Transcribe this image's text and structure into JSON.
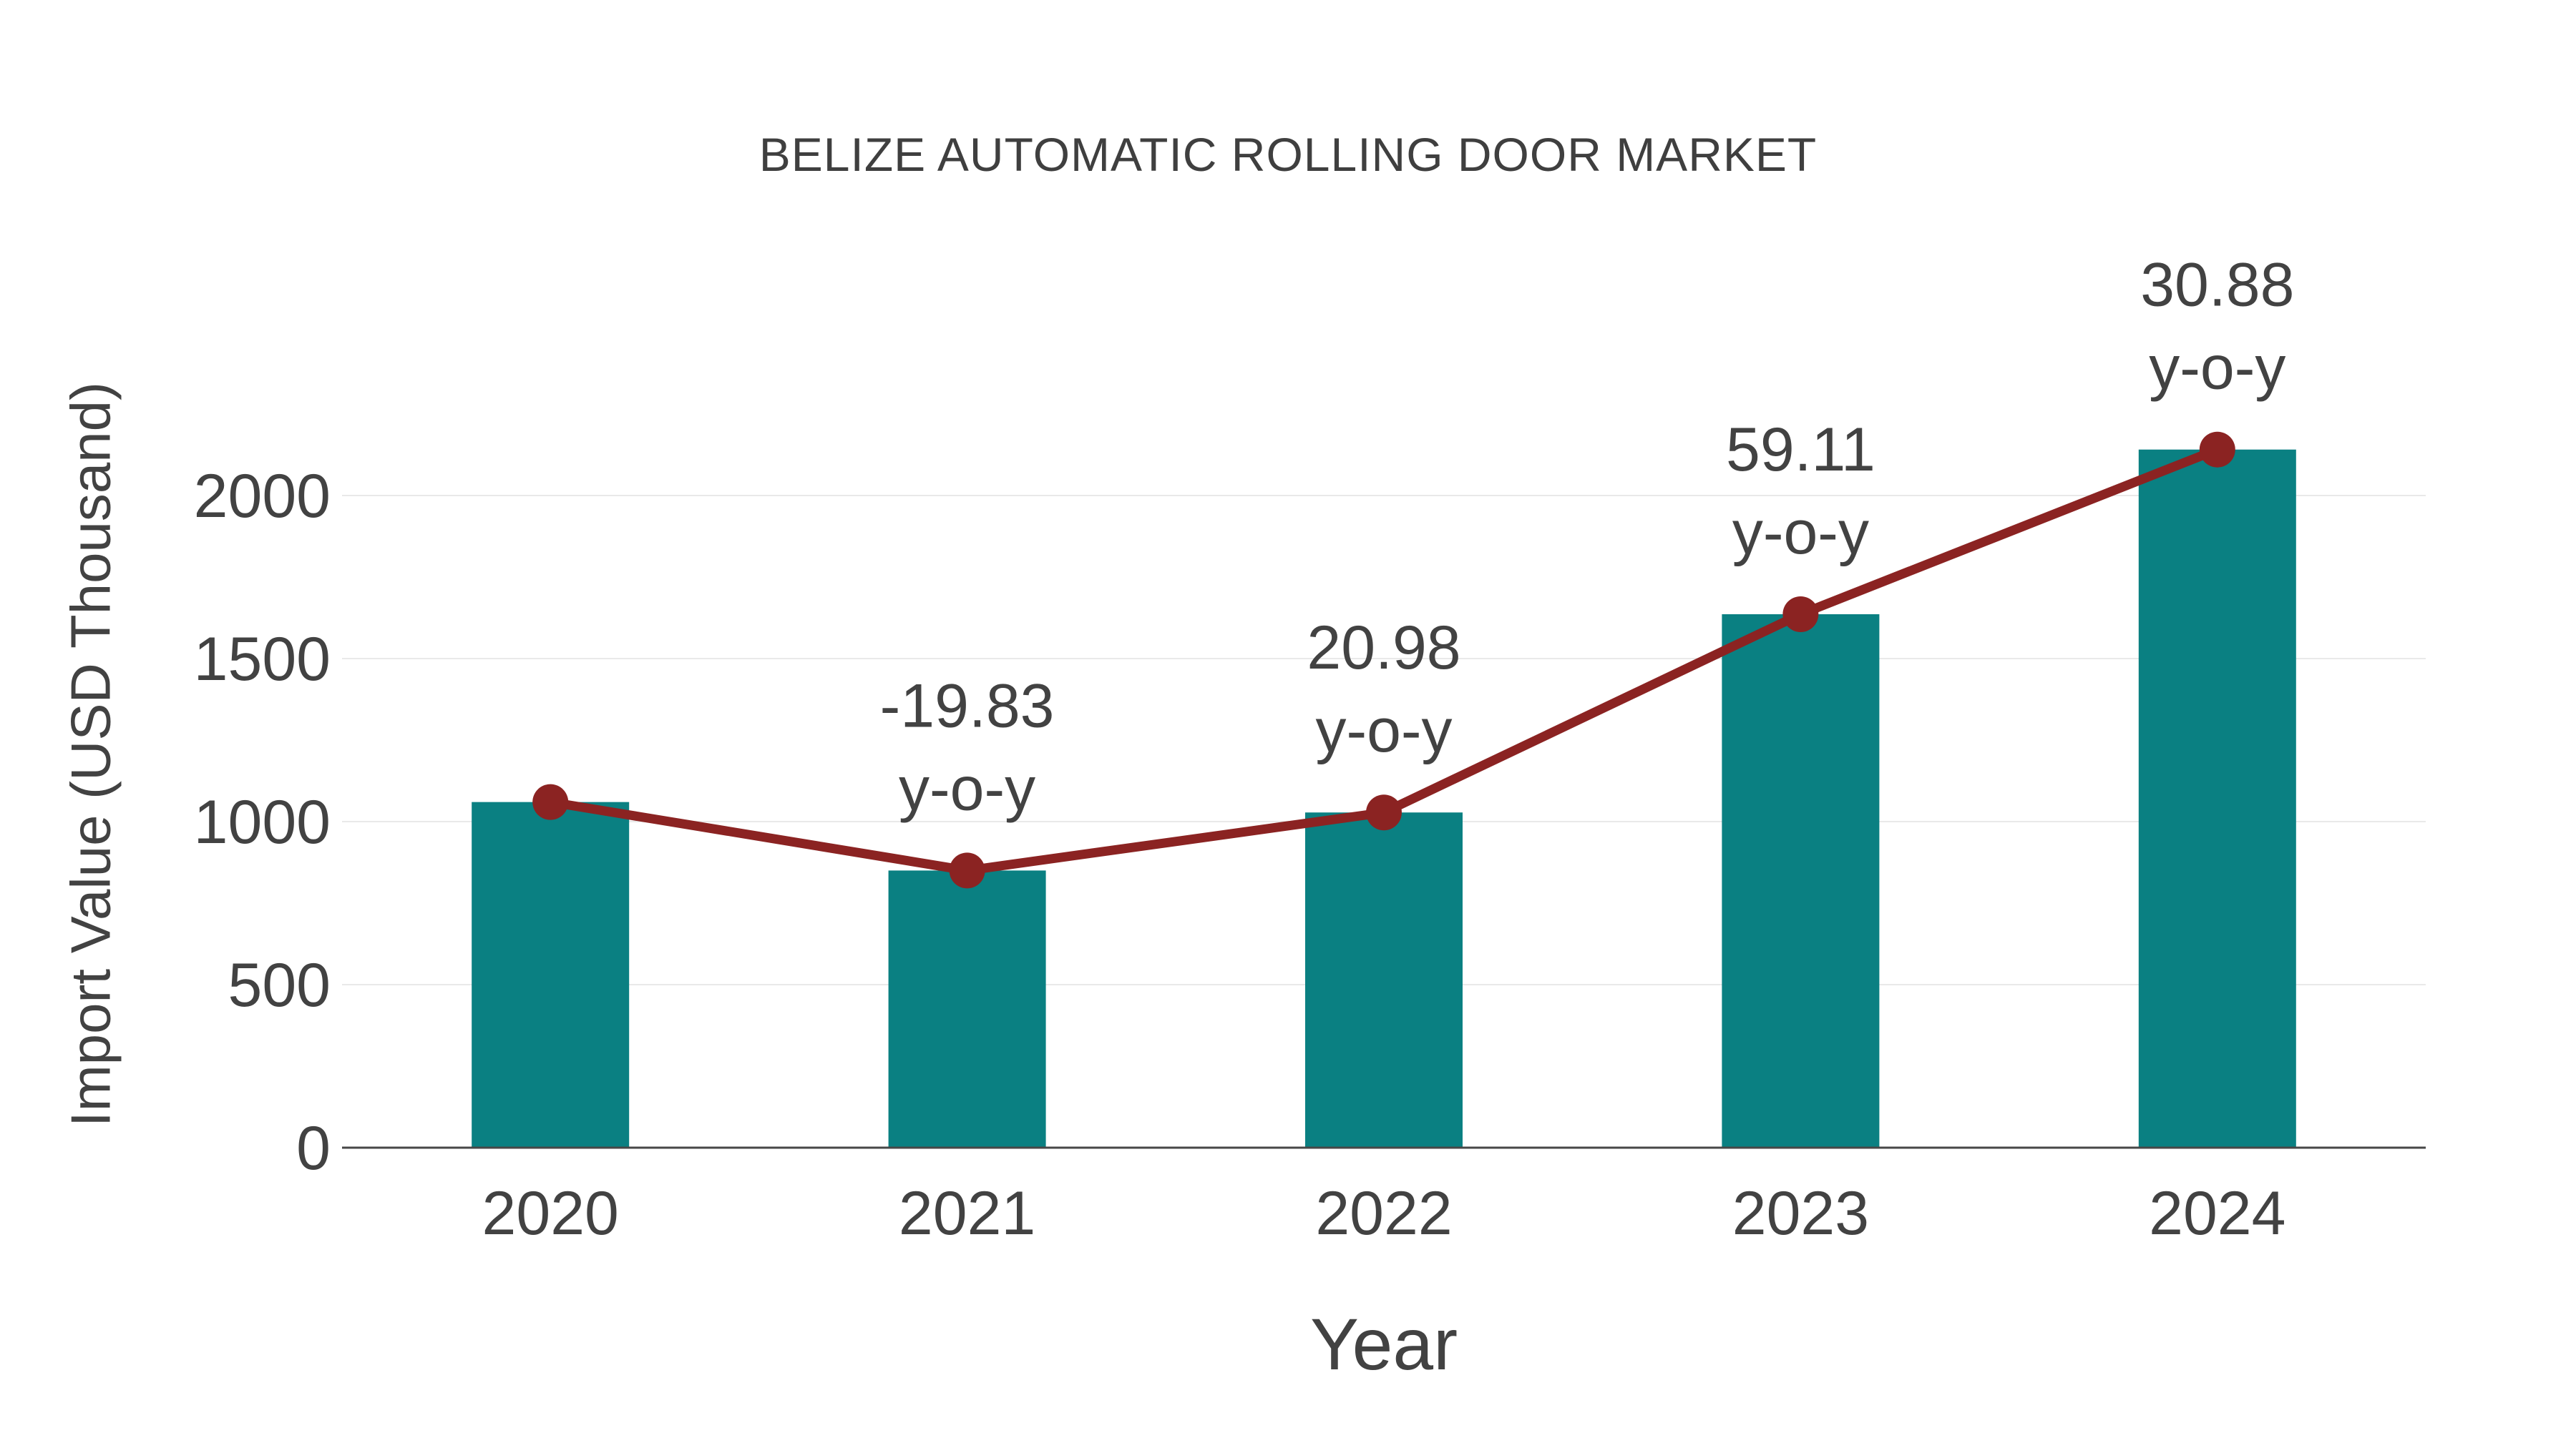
{
  "colors": {
    "background": "#ffffff",
    "bar": "#0a8082",
    "line": "#8b2322",
    "marker": "#8b2322",
    "text": "#424242",
    "title_text": "#3f3f3f",
    "grid": "#e9e9e9",
    "axis": "#474747"
  },
  "chart_data": {
    "type": "bar",
    "title": "BELIZE AUTOMATIC ROLLING DOOR MARKET",
    "xlabel": "Year",
    "ylabel": "Import Value (USD Thousand)",
    "categories": [
      "2020",
      "2021",
      "2022",
      "2023",
      "2024"
    ],
    "series": [
      {
        "name": "Import Value (USD Thousand)",
        "type": "bar",
        "values": [
          1060,
          850,
          1028,
          1636,
          2141
        ]
      },
      {
        "name": "y-o-y growth (%)",
        "type": "line",
        "values": [
          1060,
          850,
          1028,
          1636,
          2141
        ],
        "point_labels": [
          null,
          "-19.83",
          "20.98",
          "59.11",
          "30.88"
        ],
        "point_label_suffix": "y-o-y"
      }
    ],
    "yticks": [
      0,
      500,
      1000,
      1500,
      2000
    ],
    "ylim": [
      0,
      2300
    ],
    "grid": true,
    "legend": false
  }
}
